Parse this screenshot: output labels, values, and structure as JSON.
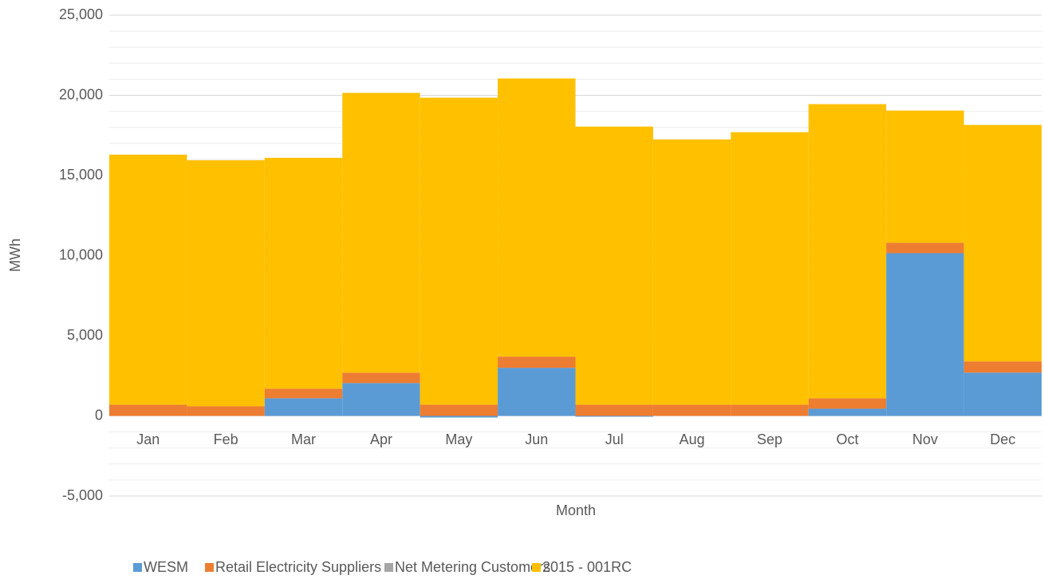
{
  "chart_data": {
    "type": "stacked_bar",
    "x_label": "Month",
    "y_label": "MWh",
    "categories": [
      "Jan",
      "Feb",
      "Mar",
      "Apr",
      "May",
      "Jun",
      "Jul",
      "Aug",
      "Sep",
      "Oct",
      "Nov",
      "Dec"
    ],
    "series": [
      {
        "name": "WESM",
        "color": "#5b9bd5",
        "values": [
          0,
          0,
          1100,
          2050,
          -100,
          3000,
          -50,
          0,
          0,
          450,
          10150,
          2700
        ]
      },
      {
        "name": "Retail Electricity Suppliers",
        "color": "#ed7d31",
        "values": [
          700,
          600,
          600,
          650,
          700,
          700,
          700,
          700,
          700,
          650,
          650,
          700
        ]
      },
      {
        "name": "Net Metering Customers",
        "color": "#a5a5a5",
        "values": [
          0,
          0,
          0,
          0,
          0,
          0,
          0,
          0,
          0,
          0,
          0,
          0
        ]
      },
      {
        "name": "2015 - 001RC",
        "color": "#ffc000",
        "values": [
          15600,
          15350,
          14400,
          17450,
          19150,
          17350,
          17350,
          16550,
          17000,
          18350,
          8250,
          14750
        ]
      }
    ],
    "ylim": [
      -5000,
      25000
    ],
    "yticks": [
      {
        "value": -5000,
        "label": "-5,000"
      },
      0,
      {
        "value": 5000,
        "label": "5,000"
      },
      {
        "value": 10000,
        "label": "10,000"
      },
      {
        "value": 15000,
        "label": "15,000"
      },
      {
        "value": 20000,
        "label": "20,000"
      },
      {
        "value": 25000,
        "label": "25,000"
      }
    ],
    "minor_yticks": [
      -4000,
      -3000,
      -2000,
      -1000,
      1000,
      2000,
      3000,
      4000,
      6000,
      7000,
      8000,
      9000,
      11000,
      12000,
      13000,
      14000,
      16000,
      17000,
      18000,
      19000,
      21000,
      22000,
      23000,
      24000
    ],
    "grid": true,
    "legend": "bottom"
  }
}
